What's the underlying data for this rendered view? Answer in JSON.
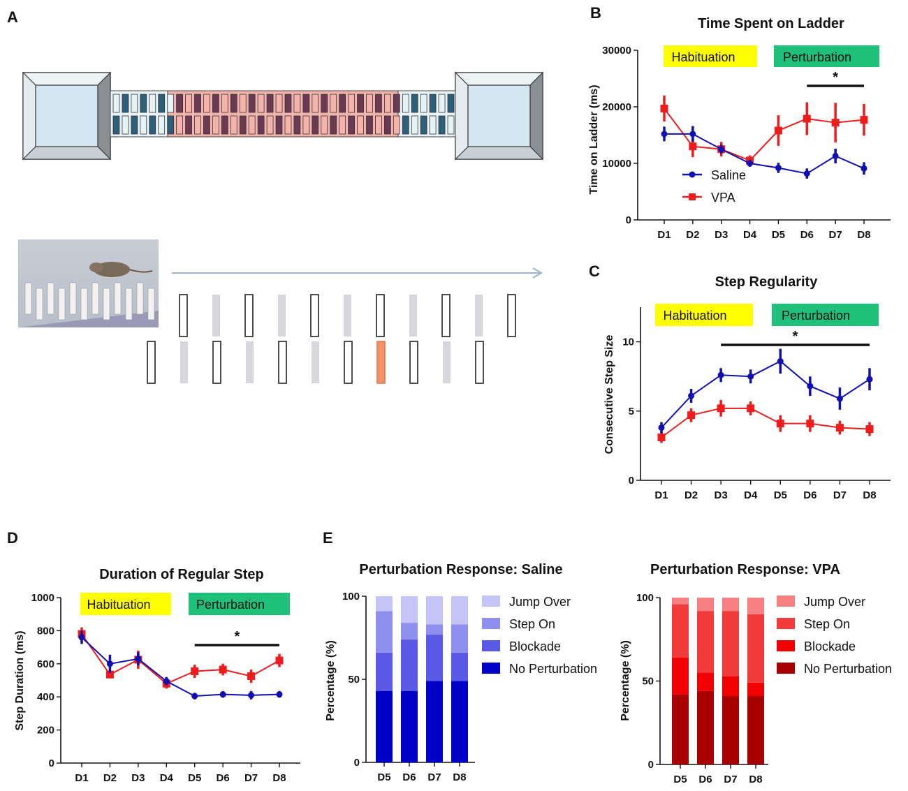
{
  "panel_labels": {
    "A": "A",
    "B": "B",
    "C": "C",
    "D": "D",
    "E": "E"
  },
  "phases": {
    "habituation": "Habituation",
    "perturbation": "Perturbation",
    "habituation_color": "#ffff00",
    "perturbation_color": "#1fc07a"
  },
  "series_colors": {
    "saline": "#1010b0",
    "vpa": "#ee1c1c"
  },
  "chart_data": [
    {
      "id": "B",
      "type": "line",
      "title": "Time Spent on Ladder",
      "xlabel": "",
      "ylabel": "Time on Ladder (ms)",
      "categories": [
        "D1",
        "D2",
        "D3",
        "D4",
        "D5",
        "D6",
        "D7",
        "D8"
      ],
      "ylim": [
        0,
        30000
      ],
      "yticks": [
        "0",
        "10000",
        "20000",
        "30000"
      ],
      "yticks_values": [
        0,
        10000,
        20000,
        30000
      ],
      "series": [
        {
          "name": "Saline",
          "values": [
            15200,
            15200,
            12500,
            10000,
            9200,
            8200,
            11300,
            9100
          ],
          "err": [
            1300,
            1400,
            800,
            600,
            900,
            900,
            1300,
            1100
          ]
        },
        {
          "name": "VPA",
          "values": [
            19700,
            13000,
            12500,
            10500,
            15800,
            17900,
            17200,
            17700
          ],
          "err": [
            2300,
            1900,
            1300,
            900,
            2700,
            2900,
            3500,
            2800
          ]
        }
      ],
      "significance": {
        "label": "*",
        "from": "D6",
        "to": "D8"
      }
    },
    {
      "id": "C",
      "type": "line",
      "title": "Step Regularity",
      "xlabel": "",
      "ylabel": "Consecutive Step Size",
      "categories": [
        "D1",
        "D2",
        "D3",
        "D4",
        "D5",
        "D6",
        "D7",
        "D8"
      ],
      "ylim": [
        0,
        12.5
      ],
      "yticks": [
        "0",
        "5",
        "10"
      ],
      "yticks_values": [
        0,
        5,
        10
      ],
      "series": [
        {
          "name": "Saline",
          "values": [
            3.8,
            6.1,
            7.6,
            7.5,
            8.6,
            6.8,
            5.9,
            7.3
          ],
          "err": [
            0.4,
            0.5,
            0.5,
            0.5,
            0.9,
            0.7,
            0.8,
            0.8
          ]
        },
        {
          "name": "VPA",
          "values": [
            3.1,
            4.7,
            5.2,
            5.2,
            4.1,
            4.1,
            3.8,
            3.7
          ],
          "err": [
            0.4,
            0.5,
            0.6,
            0.5,
            0.6,
            0.6,
            0.5,
            0.5
          ]
        }
      ],
      "significance": {
        "label": "*",
        "from": "D3",
        "to": "D8"
      }
    },
    {
      "id": "D",
      "type": "line",
      "title": "Duration of Regular Step",
      "xlabel": "",
      "ylabel": "Step Duration (ms)",
      "categories": [
        "D1",
        "D2",
        "D3",
        "D4",
        "D5",
        "D6",
        "D7",
        "D8"
      ],
      "ylim": [
        0,
        1000
      ],
      "yticks": [
        "0",
        "200",
        "400",
        "600",
        "800",
        "1000"
      ],
      "yticks_values": [
        0,
        200,
        400,
        600,
        800,
        1000
      ],
      "series": [
        {
          "name": "Saline",
          "values": [
            760,
            600,
            630,
            495,
            405,
            415,
            410,
            415
          ],
          "err": [
            40,
            55,
            40,
            25,
            20,
            20,
            25,
            20
          ]
        },
        {
          "name": "VPA",
          "values": [
            780,
            535,
            625,
            480,
            555,
            565,
            525,
            620
          ],
          "err": [
            40,
            20,
            55,
            30,
            40,
            35,
            40,
            40
          ]
        }
      ],
      "significance": {
        "label": "*",
        "from": "D5",
        "to": "D8"
      }
    },
    {
      "id": "E-saline",
      "type": "bar",
      "stacked": true,
      "title": "Perturbation Response: Saline",
      "xlabel": "",
      "ylabel": "Percentage (%)",
      "categories": [
        "D5",
        "D6",
        "D7",
        "D8"
      ],
      "ylim": [
        0,
        100
      ],
      "yticks": [
        "0",
        "50",
        "100"
      ],
      "yticks_values": [
        0,
        50,
        100
      ],
      "series": [
        {
          "name": "No Perturbation",
          "color": "#0000c8",
          "values": [
            43,
            43,
            49,
            49
          ]
        },
        {
          "name": "Blockade",
          "color": "#5a5ae6",
          "values": [
            23,
            31,
            28,
            17
          ]
        },
        {
          "name": "Step On",
          "color": "#8f8ff0",
          "values": [
            25,
            10,
            6,
            17
          ]
        },
        {
          "name": "Jump Over",
          "color": "#c4c4f7",
          "values": [
            9,
            16,
            17,
            17
          ]
        }
      ]
    },
    {
      "id": "E-vpa",
      "type": "bar",
      "stacked": true,
      "title": "Perturbation Response: VPA",
      "xlabel": "",
      "ylabel": "Percentage (%)",
      "categories": [
        "D5",
        "D6",
        "D7",
        "D8"
      ],
      "ylim": [
        0,
        100
      ],
      "yticks": [
        "0",
        "50",
        "100"
      ],
      "yticks_values": [
        0,
        50,
        100
      ],
      "series": [
        {
          "name": "No Perturbation",
          "color": "#a80000",
          "values": [
            42,
            44,
            41,
            41
          ]
        },
        {
          "name": "Blockade",
          "color": "#f00000",
          "values": [
            22,
            11,
            12,
            8
          ]
        },
        {
          "name": "Step On",
          "color": "#f23c3c",
          "values": [
            32,
            37,
            39,
            41
          ]
        },
        {
          "name": "Jump Over",
          "color": "#f78080",
          "values": [
            4,
            8,
            8,
            10
          ]
        }
      ]
    }
  ]
}
